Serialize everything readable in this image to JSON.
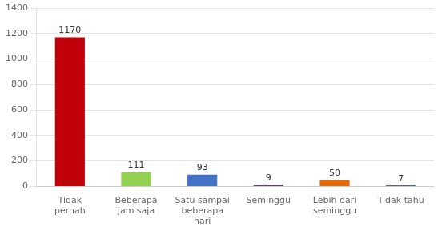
{
  "chart_data": {
    "type": "bar",
    "categories": [
      "Tidak\npernah",
      "Beberapa\njam saja",
      "Satu sampai\nbeberapa\nhari",
      "Seminggu",
      "Lebih dari\nseminggu",
      "Tidak tahu"
    ],
    "values": [
      1170,
      111,
      93,
      9,
      50,
      7
    ],
    "colors": [
      "#C0000A",
      "#92D050",
      "#4472C4",
      "#7030A0",
      "#E36C09",
      "#17375E"
    ],
    "ylim": [
      0,
      1400
    ],
    "yticks": [
      0,
      200,
      400,
      600,
      800,
      1000,
      1200,
      1400
    ],
    "grid": true,
    "data_labels": true
  }
}
